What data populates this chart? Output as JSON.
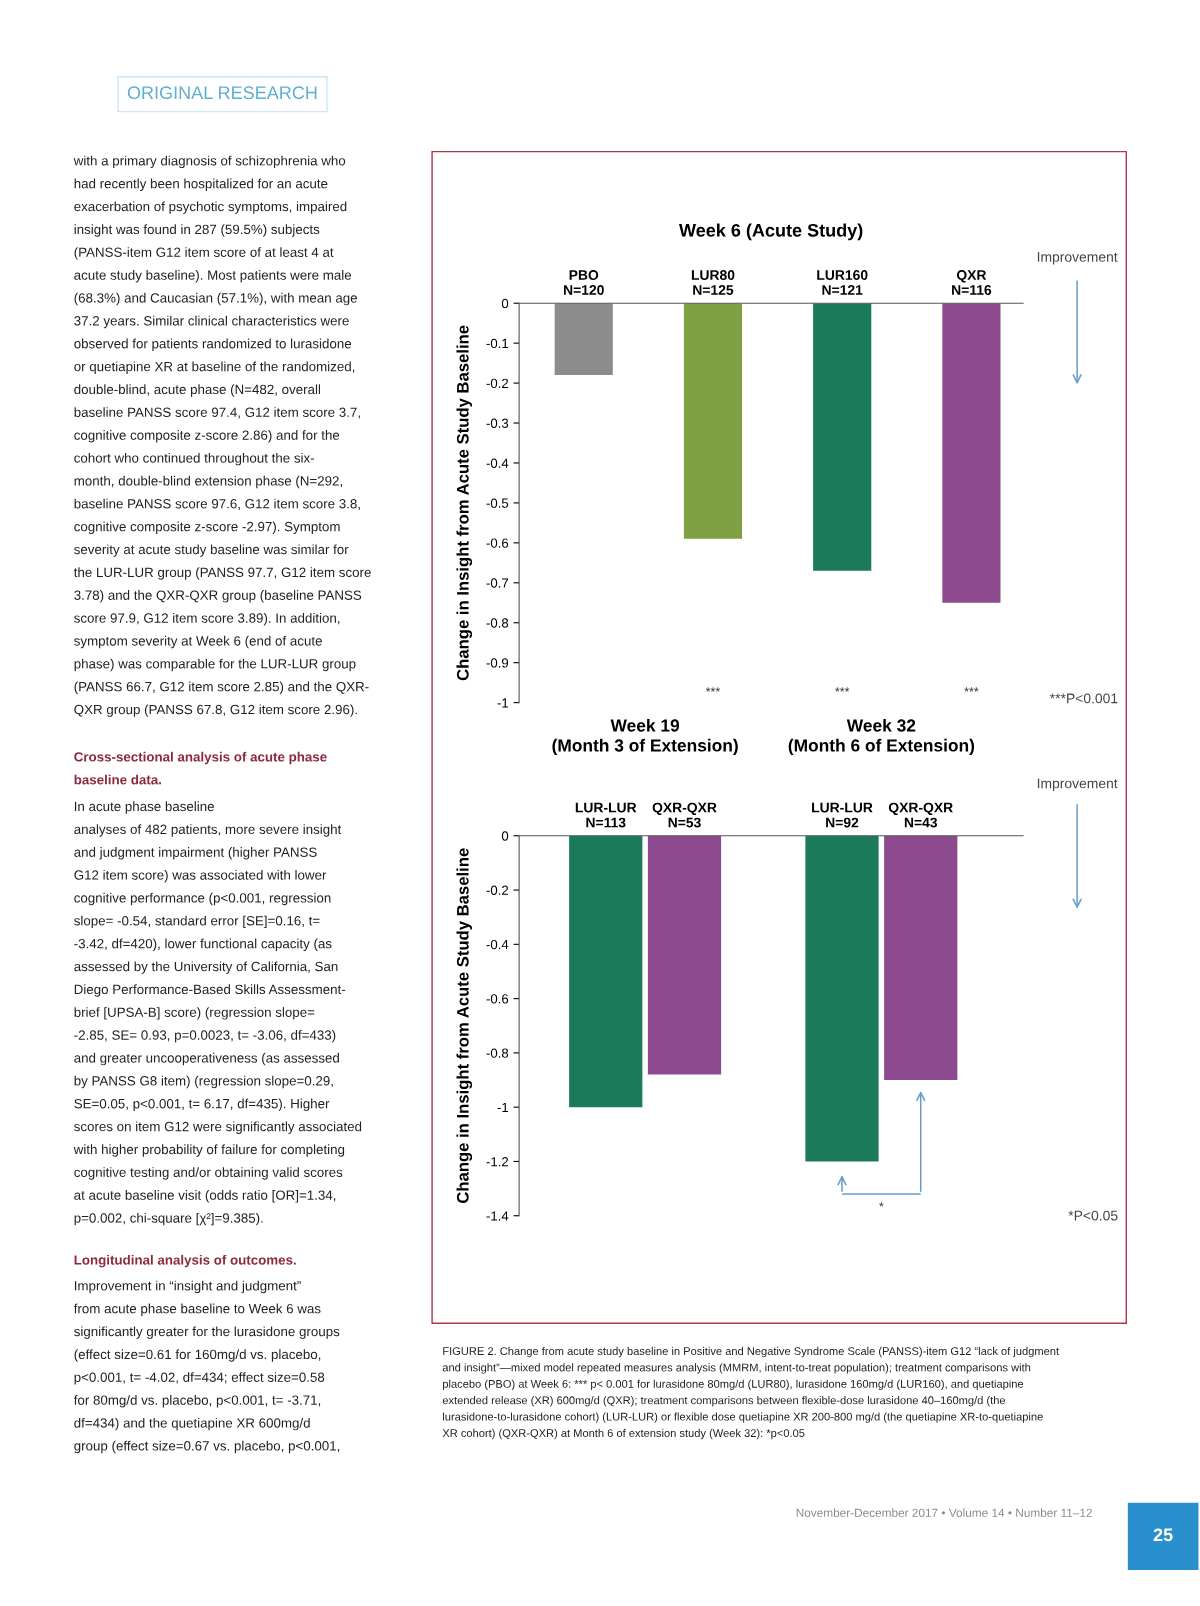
{
  "chart_data": [
    {
      "type": "bar",
      "title": "Week 6 (Acute Study)",
      "ylabel": "Change in Insight from Acute Study Baseline",
      "categories": [
        "PBO\nN=120",
        "LUR80\nN=125",
        "LUR160\nN=121",
        "QXR\nN=116"
      ],
      "values": [
        -0.18,
        -0.59,
        -0.67,
        -0.75
      ],
      "colors": [
        "#8c8c8c",
        "#7ea042",
        "#1b7a5a",
        "#8e4a8e"
      ],
      "ylim": [
        -1,
        0
      ],
      "yticks": [
        0,
        -0.1,
        -0.2,
        -0.3,
        -0.4,
        -0.5,
        -0.6,
        -0.7,
        -0.8,
        -0.9,
        -1
      ],
      "annotations": [
        "***",
        "***",
        "***",
        "***P<0.001",
        "Improvement"
      ]
    },
    {
      "type": "bar",
      "ylabel": "Change in Insight from Acute Study Baseline",
      "categories": [
        "LUR-LUR\nN=113",
        "QXR-QXR\nN=53",
        null,
        "LUR-LUR\nN=92",
        "QXR-QXR\nN=43"
      ],
      "values": [
        -1.0,
        -0.88,
        null,
        -1.2,
        -0.9
      ],
      "colors": [
        "#1b7a5a",
        "#8e4a8e",
        null,
        "#1b7a5a",
        "#8e4a8e"
      ],
      "ylim": [
        -1.4,
        0
      ],
      "yticks": [
        0,
        -0.2,
        -0.4,
        -0.6,
        -0.8,
        -1,
        -1.2,
        -1.4
      ],
      "annotations": [
        "Week 19\n(Month 3 of Extension)",
        "Week 32\n(Month 6 of Extension)",
        "*",
        "*P<0.05",
        "Improvement"
      ]
    },
    {
      "type": "other",
      "annotations": [
        "ORIGINAL RESEARCH",
        "with a primary diagnosis of schizophrenia who\nhad recently been hospitalized for an acute\nexacerbation of psychotic symptoms, impaired\ninsight was found in 287 (59.5%) subjects\n(PANSS-item G12 item score of at least 4 at\nacute study baseline). Most patients were male\n(68.3%) and Caucasian (57.1%), with mean age\n37.2 years. Similar clinical characteristics were\nobserved for patients randomized to lurasidone\nor quetiapine XR at baseline of the randomized,\ndouble-blind, acute phase (N=482, overall\nbaseline PANSS score 97.4, G12 item score 3.7,\ncognitive composite z-score 2.86) and for the\ncohort who continued throughout the six-\nmonth, double-blind extension phase (N=292,\nbaseline PANSS score 97.6, G12 item score 3.8,\ncognitive composite z-score -2.97). Symptom\nseverity at acute study baseline was similar for\nthe LUR-LUR group (PANSS 97.7, G12 item score\n3.78) and the QXR-QXR group (baseline PANSS\nscore 97.9, G12 item score 3.89). In addition,\nsymptom severity at Week 6 (end of acute\nphase) was comparable for the LUR-LUR group\n(PANSS 66.7, G12 item score 2.85) and the QXR-\nQXR group (PANSS 67.8, G12 item score 2.96).",
        "Cross-sectional analysis of acute phase\nbaseline data.",
        "In acute phase baseline\nanalyses of 482 patients, more severe insight\nand judgment impairment (higher PANSS\nG12 item score) was associated with lower\ncognitive performance (p<0.001, regression\nslope= -0.54, standard error [SE]=0.16, t=\n-3.42, df=420), lower functional capacity (as\nassessed by the University of California, San\nDiego Performance-Based Skills Assessment-\nbrief [UPSA-B] score) (regression slope=\n-2.85, SE= 0.93, p=0.0023, t= -3.06, df=433)\nand greater uncooperativeness (as assessed\nby PANSS G8 item) (regression slope=0.29,\nSE=0.05, p<0.001, t= 6.17, df=435). Higher\nscores on item G12 were significantly associated\nwith higher probability of failure for completing\ncognitive testing and/or obtaining valid scores\nat acute baseline visit (odds ratio [OR]=1.34,\np=0.002, chi-square [χ²]=9.385).",
        "Longitudinal analysis of outcomes.",
        "Improvement in “insight and judgment”\nfrom acute phase baseline to Week 6 was\nsignificantly greater for the lurasidone groups\n(effect size=0.61 for 160mg/d vs. placebo,\np<0.001, t= -4.02, df=434; effect size=0.58\nfor 80mg/d vs. placebo, p<0.001, t= -3.71,\ndf=434) and the quetiapine XR 600mg/d\ngroup (effect size=0.67 vs. placebo, p<0.001,",
        "FIGURE 2. Change from acute study baseline in Positive and Negative Syndrome Scale (PANSS)-item G12 “lack of judgment\nand insight”—mixed model repeated measures analysis (MMRM, intent-to-treat population); treatment comparisons with\nplacebo (PBO) at Week 6: *** p< 0.001 for lurasidone 80mg/d (LUR80), lurasidone 160mg/d (LUR160), and quetiapine\nextended release (XR) 600mg/d (QXR); treatment comparisons between flexible-dose lurasidone 40–160mg/d (the\nlurasidone-to-lurasidone cohort) (LUR-LUR) or flexible dose quetiapine XR 200-800 mg/d (the quetiapine XR-to-quetiapine\nXR cohort) (QXR-QXR) at Month 6 of extension study (Week 32): *p<0.05",
        "November-December 2017 • Volume 14 • Number 11–12",
        "25"
      ]
    }
  ]
}
